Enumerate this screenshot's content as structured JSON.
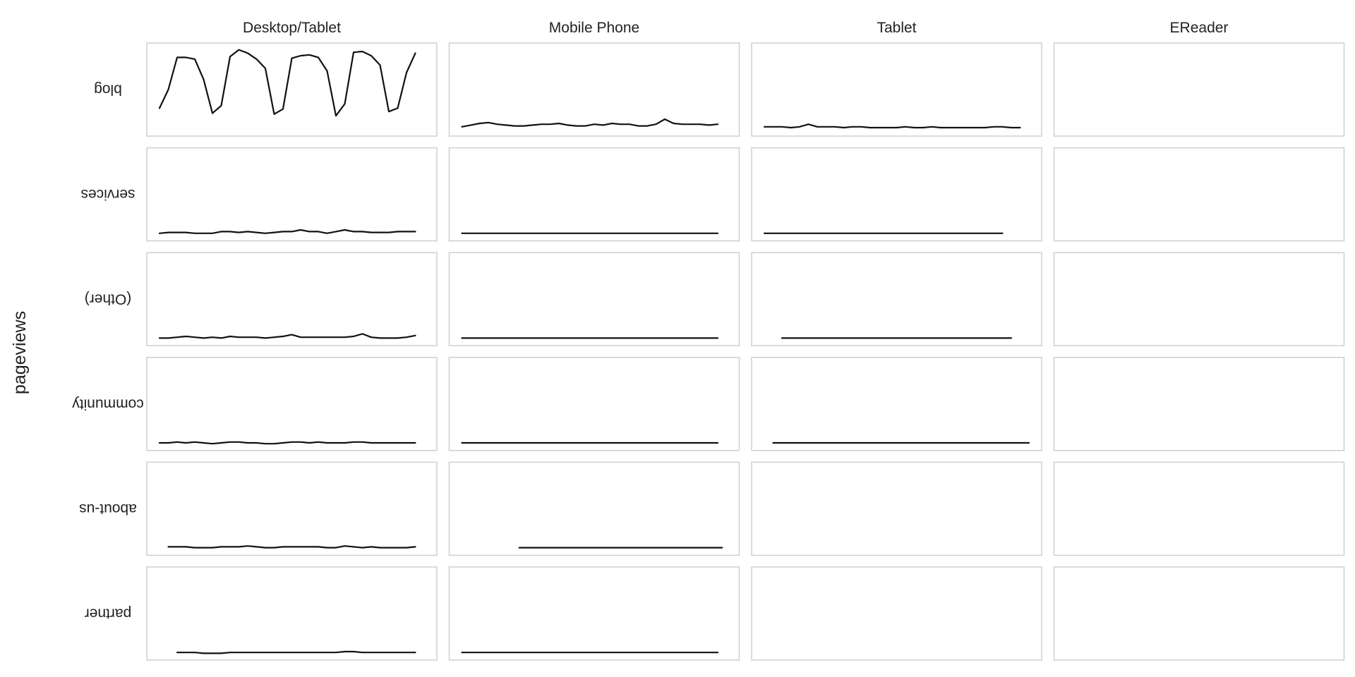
{
  "chart_data": {
    "type": "line",
    "title": "",
    "ylabel": "pageviews",
    "columns": [
      "Desktop/Tablet",
      "Mobile Phone",
      "Tablet",
      "EReader"
    ],
    "rows": [
      "blog",
      "services",
      "(Other)",
      "community",
      "about-us",
      "partner"
    ],
    "x_range": [
      0,
      30
    ],
    "y_range": [
      0,
      100
    ],
    "grid": false,
    "legend": "none",
    "line_color": "#111111",
    "panel_border_color": "#cfcfcf",
    "panels": [
      [
        {
          "x0": 0,
          "values": [
            28,
            50,
            88,
            88,
            86,
            62,
            22,
            31,
            89,
            97,
            93,
            86,
            75,
            21,
            27,
            87,
            90,
            91,
            88,
            72,
            19,
            33,
            94,
            95,
            90,
            79,
            24,
            28,
            70,
            93
          ]
        },
        {
          "x0": 0,
          "values": [
            6,
            8,
            10,
            11,
            9,
            8,
            7,
            7,
            8,
            9,
            9,
            10,
            8,
            7,
            7,
            9,
            8,
            10,
            9,
            9,
            7,
            7,
            9,
            15,
            10,
            9,
            9,
            9,
            8,
            9
          ]
        },
        {
          "x0": 0,
          "values": [
            6,
            6,
            6,
            5,
            6,
            9,
            6,
            6,
            6,
            5,
            6,
            6,
            5,
            5,
            5,
            5,
            6,
            5,
            5,
            6,
            5,
            5,
            5,
            5,
            5,
            5,
            6,
            6,
            5,
            5
          ]
        },
        null
      ],
      [
        {
          "x0": 0,
          "values": [
            4,
            5,
            5,
            5,
            4,
            4,
            4,
            6,
            6,
            5,
            6,
            5,
            4,
            5,
            6,
            6,
            8,
            6,
            6,
            4,
            6,
            8,
            6,
            6,
            5,
            5,
            5,
            6,
            6,
            6
          ]
        },
        {
          "x0": 0,
          "values": [
            4,
            4,
            4,
            4,
            4,
            4,
            4,
            4,
            4,
            4,
            4,
            4,
            4,
            4,
            4,
            4,
            4,
            4,
            4,
            4,
            4,
            4,
            4,
            4,
            4,
            4,
            4,
            4,
            4,
            4
          ]
        },
        {
          "x0": 0,
          "values": [
            4,
            4,
            4,
            4,
            4,
            4,
            4,
            4,
            4,
            4,
            4,
            4,
            4,
            4,
            4,
            4,
            4,
            4,
            4,
            4,
            4,
            4,
            4,
            4,
            4,
            4,
            4,
            4
          ]
        },
        null
      ],
      [
        {
          "x0": 0,
          "values": [
            4,
            4,
            5,
            6,
            5,
            4,
            5,
            4,
            6,
            5,
            5,
            5,
            4,
            5,
            6,
            8,
            5,
            5,
            5,
            5,
            5,
            5,
            6,
            9,
            5,
            4,
            4,
            4,
            5,
            7
          ]
        },
        {
          "x0": 0,
          "values": [
            4,
            4,
            4,
            4,
            4,
            4,
            4,
            4,
            4,
            4,
            4,
            4,
            4,
            4,
            4,
            4,
            4,
            4,
            4,
            4,
            4,
            4,
            4,
            4,
            4,
            4,
            4,
            4,
            4,
            4
          ]
        },
        {
          "x0": 2,
          "values": [
            4,
            4,
            4,
            4,
            4,
            4,
            4,
            4,
            4,
            4,
            4,
            4,
            4,
            4,
            4,
            4,
            4,
            4,
            4,
            4,
            4,
            4,
            4,
            4,
            4,
            4,
            4
          ]
        },
        null
      ],
      [
        {
          "x0": 0,
          "values": [
            4,
            4,
            5,
            4,
            5,
            4,
            3,
            4,
            5,
            5,
            4,
            4,
            3,
            3,
            4,
            5,
            5,
            4,
            5,
            4,
            4,
            4,
            5,
            5,
            4,
            4,
            4,
            4,
            4,
            4
          ]
        },
        {
          "x0": 0,
          "values": [
            4,
            4,
            4,
            4,
            4,
            4,
            4,
            4,
            4,
            4,
            4,
            4,
            4,
            4,
            4,
            4,
            4,
            4,
            4,
            4,
            4,
            4,
            4,
            4,
            4,
            4,
            4,
            4,
            4,
            4
          ]
        },
        {
          "x0": 1,
          "values": [
            4,
            4,
            4,
            4,
            4,
            4,
            4,
            4,
            4,
            4,
            4,
            4,
            4,
            4,
            4,
            4,
            4,
            4,
            4,
            4,
            4,
            4,
            4,
            4,
            4,
            4,
            4,
            4,
            4,
            4
          ]
        },
        null
      ],
      [
        {
          "x0": 1,
          "values": [
            5,
            5,
            5,
            4,
            4,
            4,
            5,
            5,
            5,
            6,
            5,
            4,
            4,
            5,
            5,
            5,
            5,
            5,
            4,
            4,
            6,
            5,
            4,
            5,
            4,
            4,
            4,
            4,
            5
          ]
        },
        {
          "x0": 6.5,
          "values": [
            4,
            4,
            4,
            4,
            4,
            4,
            4,
            4,
            4,
            4,
            4,
            4,
            4,
            4,
            4,
            4,
            4,
            4,
            4,
            4,
            4,
            4,
            4,
            4
          ]
        },
        null,
        null
      ],
      [
        {
          "x0": 2,
          "values": [
            4,
            4,
            4,
            3,
            3,
            3,
            4,
            4,
            4,
            4,
            4,
            4,
            4,
            4,
            4,
            4,
            4,
            4,
            4,
            5,
            5,
            4,
            4,
            4,
            4,
            4,
            4,
            4
          ]
        },
        {
          "x0": 0,
          "values": [
            4,
            4,
            4,
            4,
            4,
            4,
            4,
            4,
            4,
            4,
            4,
            4,
            4,
            4,
            4,
            4,
            4,
            4,
            4,
            4,
            4,
            4,
            4,
            4,
            4,
            4,
            4,
            4,
            4,
            4
          ]
        },
        null,
        null
      ]
    ]
  }
}
